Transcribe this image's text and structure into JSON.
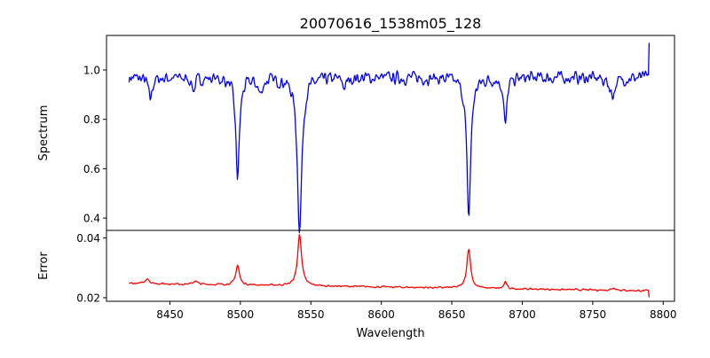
{
  "chart_data": {
    "type": "line",
    "title": "20070616_1538m05_128",
    "xlabel": "Wavelength",
    "xlim": [
      8405,
      8808
    ],
    "xticks": [
      8450,
      8500,
      8550,
      8600,
      8650,
      8700,
      8750,
      8800
    ],
    "xrange": [
      8421,
      8790
    ],
    "panels": [
      {
        "name": "spectrum",
        "ylabel": "Spectrum",
        "ylim": [
          0.35,
          1.14
        ],
        "yticks": [
          "0.4",
          "0.6",
          "0.8",
          "1.0"
        ],
        "color": "#0000ff",
        "series": {
          "base": 0.97,
          "noise": 0.035,
          "endpoint_right": 1.11,
          "features": [
            {
              "center": 8436,
              "depth": 0.09,
              "width": 1.5
            },
            {
              "center": 8467,
              "depth": 0.05,
              "width": 1.5
            },
            {
              "center": 8498,
              "depth": 0.4,
              "width": 1.6
            },
            {
              "center": 8514,
              "depth": 0.06,
              "width": 2.0
            },
            {
              "center": 8542,
              "depth": 0.62,
              "width": 1.9
            },
            {
              "center": 8574,
              "depth": 0.04,
              "width": 1.5
            },
            {
              "center": 8662,
              "depth": 0.56,
              "width": 1.7
            },
            {
              "center": 8688,
              "depth": 0.2,
              "width": 1.3
            },
            {
              "center": 8764,
              "depth": 0.07,
              "width": 2.5
            }
          ]
        }
      },
      {
        "name": "error",
        "ylabel": "Error",
        "ylim": [
          0.0188,
          0.0425
        ],
        "yticks": [
          "0.02",
          "0.04"
        ],
        "color": "#ff0000",
        "series": {
          "base_left": 0.0248,
          "base_right": 0.0223,
          "noise": 0.0004,
          "endpoint_right": 0.0201,
          "features": [
            {
              "center": 8434,
              "height": 0.0018,
              "width": 1.5
            },
            {
              "center": 8468,
              "height": 0.0012,
              "width": 1.5
            },
            {
              "center": 8498,
              "height": 0.0066,
              "width": 1.5
            },
            {
              "center": 8542,
              "height": 0.0172,
              "width": 1.7
            },
            {
              "center": 8662,
              "height": 0.0133,
              "width": 1.6
            },
            {
              "center": 8688,
              "height": 0.0022,
              "width": 1.2
            },
            {
              "center": 8765,
              "height": 0.0008,
              "width": 2.0
            }
          ]
        }
      }
    ]
  }
}
